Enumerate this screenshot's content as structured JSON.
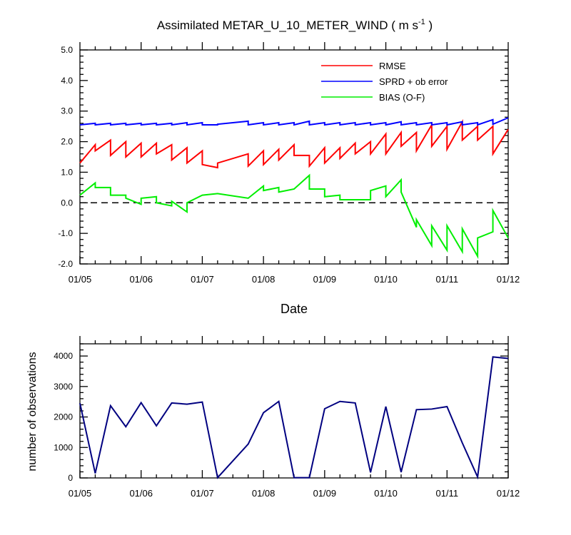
{
  "title": {
    "main": "Assimilated METAR_U_10_METER_WIND ( m s",
    "superscript": "-1",
    "close": " )"
  },
  "chart_data": [
    {
      "type": "line",
      "xlabel": "Date",
      "ylabel": "",
      "x_range_days": [
        0,
        7
      ],
      "ylim": [
        -2.0,
        5.0
      ],
      "y_ticks": [
        "-2.0",
        "-1.0",
        "0.0",
        "1.0",
        "2.0",
        "3.0",
        "4.0",
        "5.0"
      ],
      "x_tick_labels": [
        "01/05",
        "01/06",
        "01/07",
        "01/08",
        "01/09",
        "01/10",
        "01/11",
        "01/12"
      ],
      "reference_line": {
        "y": 0,
        "style": "dashed"
      },
      "legend_position": "top-right",
      "series": [
        {
          "name": "RMSE",
          "color": "#ff0000",
          "x": [
            0,
            0.25,
            0.25,
            0.5,
            0.5,
            0.75,
            0.75,
            1,
            1,
            1.25,
            1.25,
            1.5,
            1.5,
            1.75,
            1.75,
            2,
            2,
            2.25,
            2.25,
            2.75,
            2.75,
            3,
            3,
            3.25,
            3.25,
            3.5,
            3.5,
            3.75,
            3.75,
            4,
            4,
            4.25,
            4.25,
            4.5,
            4.5,
            4.75,
            4.75,
            5,
            5,
            5.25,
            5.25,
            5.5,
            5.5,
            5.75,
            5.75,
            6,
            6,
            6.25,
            6.25,
            6.5,
            6.5,
            6.75,
            6.75,
            7
          ],
          "values": [
            1.3,
            1.9,
            1.7,
            2.05,
            1.55,
            2.0,
            1.5,
            1.95,
            1.5,
            1.95,
            1.6,
            1.9,
            1.4,
            1.8,
            1.3,
            1.7,
            1.25,
            1.15,
            1.3,
            1.6,
            1.2,
            1.7,
            1.25,
            1.75,
            1.4,
            1.9,
            1.55,
            1.55,
            1.2,
            1.8,
            1.3,
            1.8,
            1.45,
            1.95,
            1.6,
            2.0,
            1.6,
            2.25,
            1.6,
            2.3,
            1.85,
            2.3,
            1.7,
            2.55,
            1.85,
            2.5,
            1.75,
            2.65,
            2.05,
            2.5,
            2.05,
            2.5,
            1.6,
            2.4
          ]
        },
        {
          "name": "SPRD + ob error",
          "color": "#0000ff",
          "x": [
            0,
            0.25,
            0.25,
            0.5,
            0.5,
            0.75,
            0.75,
            1,
            1,
            1.25,
            1.25,
            1.5,
            1.5,
            1.75,
            1.75,
            2,
            2,
            2.25,
            2.25,
            2.75,
            2.75,
            3,
            3,
            3.25,
            3.25,
            3.5,
            3.5,
            3.75,
            3.75,
            4,
            4,
            4.25,
            4.25,
            4.5,
            4.5,
            4.75,
            4.75,
            5,
            5,
            5.25,
            5.25,
            5.5,
            5.5,
            5.75,
            5.75,
            6,
            6,
            6.25,
            6.25,
            6.5,
            6.5,
            6.75,
            6.75,
            7
          ],
          "values": [
            2.55,
            2.6,
            2.55,
            2.6,
            2.55,
            2.6,
            2.55,
            2.6,
            2.55,
            2.6,
            2.55,
            2.6,
            2.55,
            2.62,
            2.55,
            2.62,
            2.55,
            2.55,
            2.57,
            2.67,
            2.55,
            2.62,
            2.55,
            2.62,
            2.55,
            2.62,
            2.55,
            2.67,
            2.55,
            2.62,
            2.55,
            2.62,
            2.55,
            2.62,
            2.55,
            2.62,
            2.55,
            2.62,
            2.55,
            2.65,
            2.55,
            2.62,
            2.55,
            2.62,
            2.55,
            2.62,
            2.55,
            2.65,
            2.55,
            2.62,
            2.55,
            2.72,
            2.57,
            2.78
          ]
        },
        {
          "name": "BIAS (O-F)",
          "color": "#00ee00",
          "x": [
            0,
            0.25,
            0.25,
            0.5,
            0.5,
            0.75,
            0.75,
            1,
            1,
            1.25,
            1.25,
            1.5,
            1.5,
            1.75,
            1.75,
            2,
            2,
            2.25,
            2.25,
            2.75,
            2.75,
            3,
            3,
            3.25,
            3.25,
            3.5,
            3.5,
            3.75,
            3.75,
            4,
            4,
            4.25,
            4.25,
            4.5,
            4.5,
            4.75,
            4.75,
            5,
            5,
            5.25,
            5.25,
            5.5,
            5.5,
            5.75,
            5.75,
            6,
            6,
            6.25,
            6.25,
            6.5,
            6.5,
            6.75,
            6.75,
            7
          ],
          "values": [
            0.25,
            0.65,
            0.5,
            0.5,
            0.25,
            0.25,
            0.15,
            -0.05,
            0.15,
            0.2,
            0.0,
            -0.1,
            0.05,
            -0.3,
            0.0,
            0.25,
            0.25,
            0.3,
            0.3,
            0.15,
            0.15,
            0.55,
            0.4,
            0.5,
            0.35,
            0.45,
            0.45,
            0.9,
            0.45,
            0.45,
            0.2,
            0.25,
            0.1,
            0.1,
            0.1,
            0.1,
            0.4,
            0.55,
            0.2,
            0.75,
            0.35,
            -0.8,
            -0.55,
            -1.4,
            -0.75,
            -1.55,
            -0.75,
            -1.6,
            -0.85,
            -1.75,
            -1.15,
            -0.95,
            -0.25,
            -1.15
          ]
        }
      ]
    },
    {
      "type": "line",
      "xlabel": "",
      "ylabel": "number of observations",
      "x_range_days": [
        0,
        7
      ],
      "ylim": [
        0,
        4400
      ],
      "y_ticks": [
        "0",
        "1000",
        "2000",
        "3000",
        "4000"
      ],
      "x_tick_labels": [
        "01/05",
        "01/06",
        "01/07",
        "01/08",
        "01/09",
        "01/10",
        "01/11",
        "01/12"
      ],
      "series": [
        {
          "name": "number of observations",
          "color": "#000080",
          "x": [
            0,
            0.25,
            0.5,
            0.75,
            1,
            1.25,
            1.5,
            1.75,
            2,
            2.25,
            2.75,
            3,
            3.25,
            3.5,
            3.75,
            4,
            4.25,
            4.5,
            4.75,
            5,
            5.25,
            5.5,
            5.75,
            6,
            6.25,
            6.5,
            6.75,
            7
          ],
          "values": [
            2450,
            150,
            2370,
            1680,
            2470,
            1710,
            2460,
            2420,
            2490,
            10,
            1110,
            2140,
            2510,
            10,
            10,
            2270,
            2510,
            2460,
            180,
            2340,
            190,
            2240,
            2260,
            2340,
            1150,
            30,
            3970,
            3920
          ]
        }
      ]
    }
  ]
}
